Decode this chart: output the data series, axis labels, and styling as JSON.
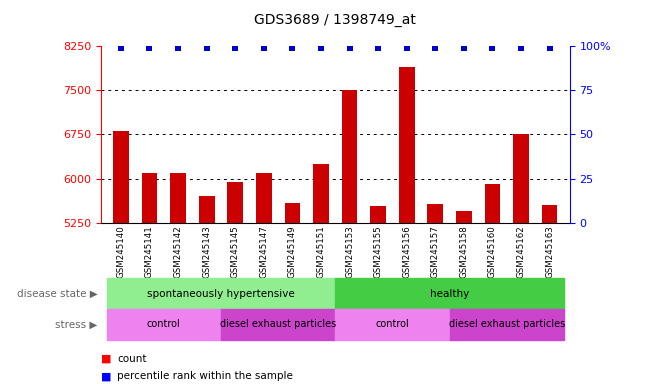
{
  "title": "GDS3689 / 1398749_at",
  "samples": [
    "GSM245140",
    "GSM245141",
    "GSM245142",
    "GSM245143",
    "GSM245145",
    "GSM245147",
    "GSM245149",
    "GSM245151",
    "GSM245153",
    "GSM245155",
    "GSM245156",
    "GSM245157",
    "GSM245158",
    "GSM245160",
    "GSM245162",
    "GSM245163"
  ],
  "counts": [
    6800,
    6100,
    6100,
    5700,
    5950,
    6100,
    5580,
    6250,
    7500,
    5530,
    7900,
    5560,
    5450,
    5900,
    6750,
    5550
  ],
  "percentiles": [
    99,
    99,
    99,
    99,
    99,
    99,
    99,
    99,
    99,
    99,
    99,
    99,
    99,
    99,
    99,
    99
  ],
  "ylim_left": [
    5250,
    8250
  ],
  "ylim_right": [
    0,
    100
  ],
  "yticks_left": [
    5250,
    6000,
    6750,
    7500,
    8250
  ],
  "yticks_right": [
    0,
    25,
    50,
    75,
    100
  ],
  "grid_lines": [
    6000,
    6750,
    7500
  ],
  "bar_color": "#cc0000",
  "percentile_color": "#0000cc",
  "disease_state_groups": [
    {
      "label": "spontaneously hypertensive",
      "start": 0,
      "end": 7,
      "color": "#90ee90"
    },
    {
      "label": "healthy",
      "start": 8,
      "end": 15,
      "color": "#44cc44"
    }
  ],
  "stress_groups": [
    {
      "label": "control",
      "start": 0,
      "end": 3,
      "color": "#ee82ee"
    },
    {
      "label": "diesel exhaust particles",
      "start": 4,
      "end": 7,
      "color": "#cc44cc"
    },
    {
      "label": "control",
      "start": 8,
      "end": 11,
      "color": "#ee82ee"
    },
    {
      "label": "diesel exhaust particles",
      "start": 12,
      "end": 15,
      "color": "#cc44cc"
    }
  ],
  "bar_width": 0.55,
  "fig_width": 6.51,
  "fig_height": 3.84
}
